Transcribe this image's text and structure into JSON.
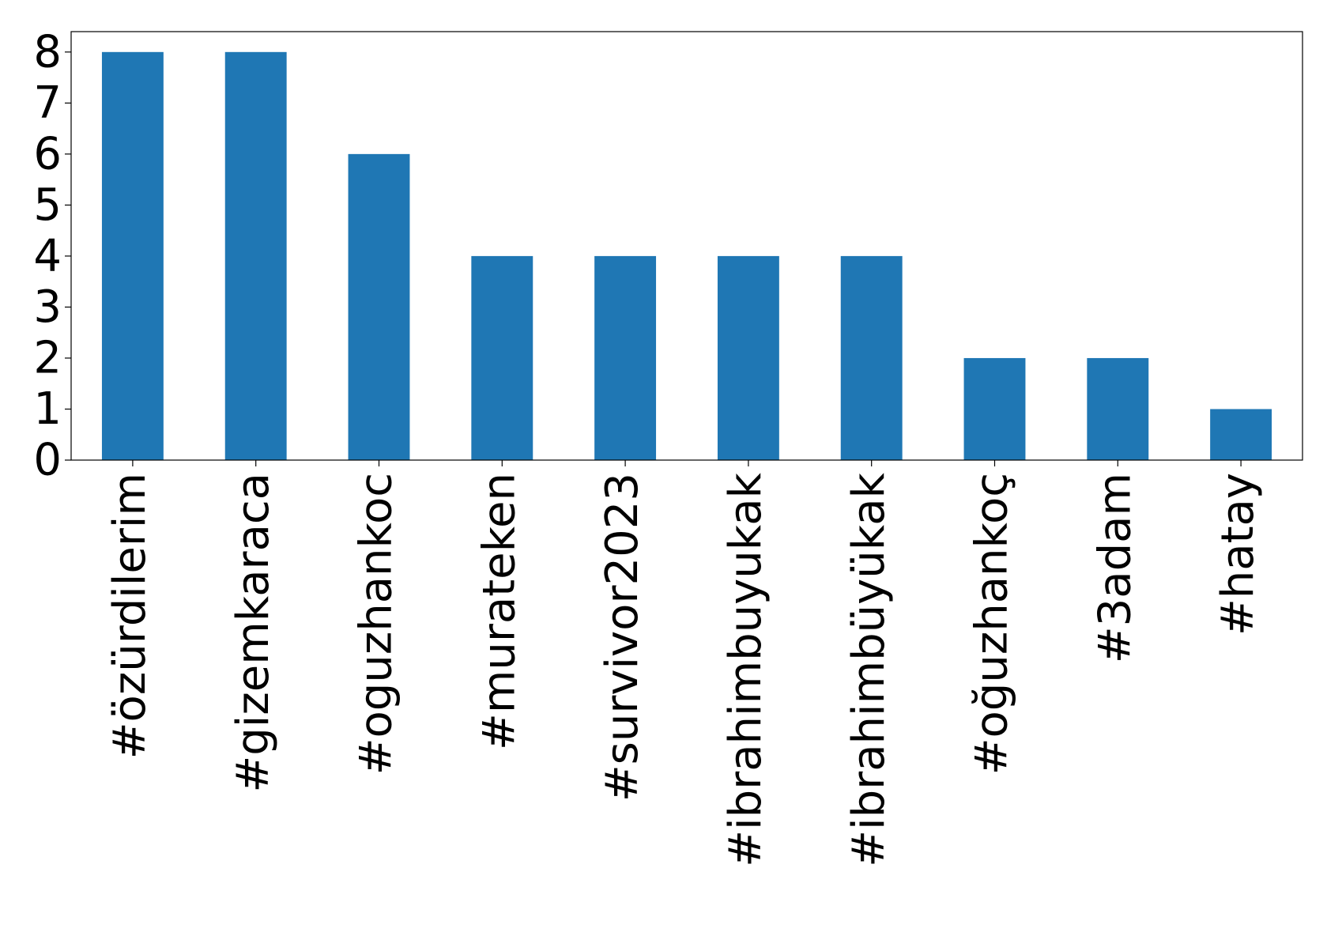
{
  "chart_data": {
    "type": "bar",
    "categories": [
      "#özürdilerim",
      "#gizemkaraca",
      "#oguzhankoc",
      "#murateken",
      "#survivor2023",
      "#ibrahimbuyukak",
      "#ibrahimbüyükak",
      "#oğuzhankoç",
      "#3adam",
      "#hatay"
    ],
    "values": [
      8,
      8,
      6,
      4,
      4,
      4,
      4,
      2,
      2,
      1
    ],
    "ylim": [
      0,
      8.4
    ],
    "yticks": [
      0,
      1,
      2,
      3,
      4,
      5,
      6,
      7,
      8
    ],
    "title": "",
    "xlabel": "",
    "ylabel": "",
    "grid": false,
    "bar_color": "#1f77b4"
  }
}
